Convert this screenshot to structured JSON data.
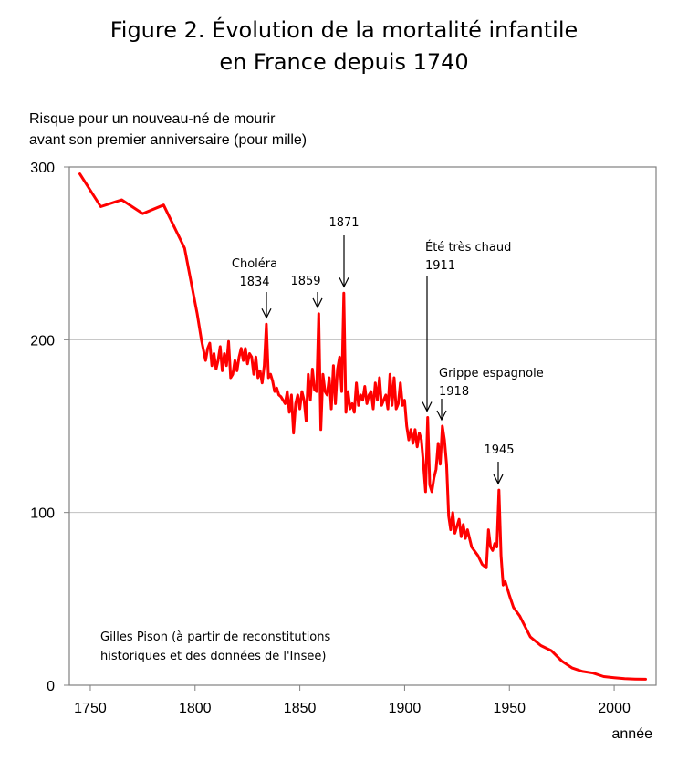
{
  "title_lines": [
    "Figure 2. Évolution de la mortalité infantile",
    "en France depuis 1740"
  ],
  "ylabel_lines": [
    "Risque pour un nouveau-né de mourir",
    "avant son premier anniversaire (pour mille)"
  ],
  "xlabel": "année",
  "credit_lines": [
    "Gilles Pison (à partir de reconstitutions",
    "historiques et des données de l'Insee)"
  ],
  "colors": {
    "series": "#ff0000",
    "grid": "#c0c0c0",
    "frame": "#808080"
  },
  "chart_data": {
    "type": "line",
    "title": "Figure 2. Évolution de la mortalité infantile en France depuis 1740",
    "xlabel": "année",
    "ylabel": "Risque pour un nouveau-né de mourir avant son premier anniversaire (pour mille)",
    "xlim": [
      1740,
      2020
    ],
    "ylim": [
      0,
      300
    ],
    "xticks": [
      1750,
      1800,
      1850,
      1900,
      1950,
      2000
    ],
    "yticks": [
      0,
      100,
      200,
      300
    ],
    "grid": "horizontal",
    "series": [
      {
        "name": "Mortalité infantile",
        "x": [
          1745,
          1755,
          1765,
          1775,
          1785,
          1795,
          1801,
          1803,
          1805,
          1806,
          1807,
          1808,
          1809,
          1810,
          1811,
          1812,
          1813,
          1814,
          1815,
          1816,
          1817,
          1818,
          1819,
          1820,
          1821,
          1822,
          1823,
          1824,
          1825,
          1826,
          1827,
          1828,
          1829,
          1830,
          1831,
          1832,
          1833,
          1834,
          1835,
          1836,
          1837,
          1838,
          1839,
          1840,
          1841,
          1842,
          1843,
          1844,
          1845,
          1846,
          1847,
          1848,
          1849,
          1850,
          1851,
          1852,
          1853,
          1854,
          1855,
          1856,
          1857,
          1858,
          1859,
          1860,
          1861,
          1862,
          1863,
          1864,
          1865,
          1866,
          1867,
          1868,
          1869,
          1870,
          1871,
          1872,
          1873,
          1874,
          1875,
          1876,
          1877,
          1878,
          1879,
          1880,
          1881,
          1882,
          1883,
          1884,
          1885,
          1886,
          1887,
          1888,
          1889,
          1890,
          1891,
          1892,
          1893,
          1894,
          1895,
          1896,
          1897,
          1898,
          1899,
          1900,
          1901,
          1902,
          1903,
          1904,
          1905,
          1906,
          1907,
          1908,
          1909,
          1910,
          1911,
          1912,
          1913,
          1914,
          1915,
          1916,
          1917,
          1918,
          1919,
          1920,
          1921,
          1922,
          1923,
          1924,
          1925,
          1926,
          1927,
          1928,
          1929,
          1930,
          1932,
          1935,
          1937,
          1939,
          1940,
          1941,
          1942,
          1943,
          1944,
          1945,
          1946,
          1947,
          1948,
          1950,
          1952,
          1955,
          1960,
          1965,
          1970,
          1975,
          1980,
          1985,
          1990,
          1995,
          2000,
          2005,
          2010,
          2015
        ],
        "values": [
          296,
          277,
          281,
          273,
          278,
          253,
          215,
          200,
          188,
          195,
          198,
          185,
          192,
          183,
          188,
          196,
          182,
          192,
          185,
          199,
          178,
          180,
          188,
          182,
          190,
          195,
          188,
          195,
          186,
          192,
          190,
          180,
          190,
          178,
          182,
          175,
          185,
          209,
          178,
          180,
          176,
          170,
          172,
          168,
          167,
          165,
          163,
          170,
          158,
          168,
          146,
          163,
          168,
          160,
          170,
          165,
          153,
          180,
          165,
          183,
          171,
          170,
          215,
          148,
          180,
          170,
          168,
          178,
          160,
          185,
          163,
          183,
          190,
          170,
          227,
          158,
          170,
          160,
          163,
          158,
          175,
          162,
          168,
          165,
          173,
          163,
          168,
          170,
          160,
          175,
          165,
          178,
          162,
          165,
          168,
          160,
          180,
          162,
          178,
          160,
          163,
          175,
          162,
          165,
          150,
          142,
          148,
          140,
          148,
          138,
          146,
          142,
          128,
          112,
          155,
          116,
          112,
          120,
          125,
          140,
          128,
          150,
          142,
          128,
          98,
          90,
          100,
          88,
          92,
          96,
          86,
          93,
          85,
          90,
          80,
          75,
          70,
          68,
          90,
          80,
          78,
          82,
          80,
          113,
          75,
          58,
          60,
          52,
          45,
          40,
          28,
          23,
          20,
          14,
          10,
          8,
          7,
          5,
          4.4,
          3.8,
          3.6,
          3.5
        ]
      }
    ],
    "annotations": [
      {
        "lines": [
          "Choléra",
          "1834"
        ],
        "year": 1834,
        "value": 209
      },
      {
        "lines": [
          "1859"
        ],
        "year": 1859,
        "value": 215
      },
      {
        "lines": [
          "1871"
        ],
        "year": 1871,
        "value": 227
      },
      {
        "lines": [
          "Été très chaud",
          "1911"
        ],
        "year": 1911,
        "value": 155
      },
      {
        "lines": [
          "Grippe espagnole",
          "1918"
        ],
        "year": 1918,
        "value": 150
      },
      {
        "lines": [
          "1945"
        ],
        "year": 1945,
        "value": 113
      }
    ]
  }
}
